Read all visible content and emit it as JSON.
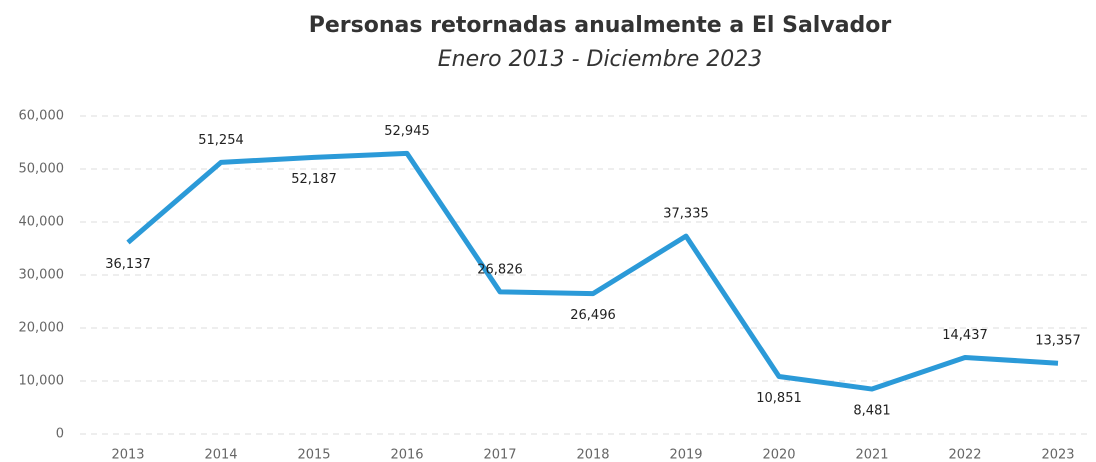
{
  "chart_data": {
    "type": "line",
    "title": "Personas retornadas anualmente a El Salvador",
    "subtitle": "Enero 2013 - Diciembre 2023",
    "categories": [
      "2013",
      "2014",
      "2015",
      "2016",
      "2017",
      "2018",
      "2019",
      "2020",
      "2021",
      "2022",
      "2023"
    ],
    "series": [
      {
        "name": "Personas retornadas",
        "color": "#2b9ad8",
        "values": [
          36137,
          51254,
          52187,
          52945,
          26826,
          26496,
          37335,
          10851,
          8481,
          14437,
          13357
        ],
        "value_labels": [
          "36,137",
          "51,254",
          "52,187",
          "52,945",
          "26,826",
          "26,496",
          "37,335",
          "10,851",
          "8,481",
          "14,437",
          "13,357"
        ]
      }
    ],
    "ylim": [
      0,
      60000
    ],
    "yticks": [
      0,
      {
        "value": 10000,
        "label": "10,000"
      },
      {
        "value": 20000,
        "label": "20,000"
      },
      {
        "value": 30000,
        "label": "30,000"
      },
      {
        "value": 40000,
        "label": "40,000"
      },
      {
        "value": 50000,
        "label": "50,000"
      },
      {
        "value": 60000,
        "label": "60,000"
      }
    ],
    "grid": true
  }
}
